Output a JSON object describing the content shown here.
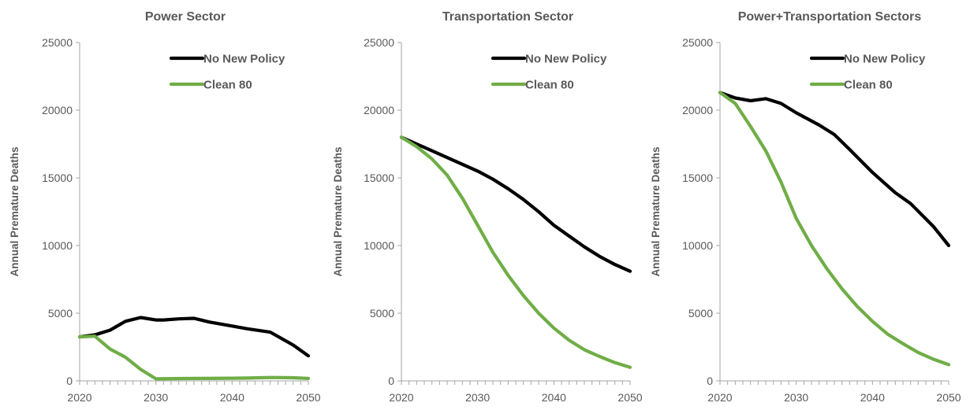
{
  "chart_data": [
    {
      "type": "line",
      "title": "Power Sector",
      "xlabel": "",
      "ylabel": "Annual Premature Deaths",
      "xlim": [
        2020,
        2050
      ],
      "ylim": [
        0,
        25000
      ],
      "xticks": [
        2020,
        2030,
        2040,
        2050
      ],
      "yticks": [
        0,
        5000,
        10000,
        15000,
        20000,
        25000
      ],
      "grid": false,
      "legend": "top-right",
      "series": [
        {
          "name": "No New Policy",
          "color": "#000000",
          "x": [
            2020,
            2022,
            2024,
            2026,
            2028,
            2030,
            2031,
            2033,
            2035,
            2037,
            2040,
            2042,
            2045,
            2048,
            2050
          ],
          "y": [
            3250,
            3400,
            3750,
            4400,
            4680,
            4500,
            4500,
            4580,
            4620,
            4350,
            4050,
            3850,
            3600,
            2650,
            1850
          ]
        },
        {
          "name": "Clean 80",
          "color": "#70ad47",
          "x": [
            2020,
            2022,
            2024,
            2026,
            2028,
            2030,
            2035,
            2040,
            2042,
            2045,
            2048,
            2050
          ],
          "y": [
            3250,
            3300,
            2350,
            1750,
            850,
            150,
            180,
            200,
            210,
            250,
            230,
            180
          ]
        }
      ]
    },
    {
      "type": "line",
      "title": "Transportation Sector",
      "xlabel": "",
      "ylabel": "Annual Premature Deaths",
      "xlim": [
        2020,
        2050
      ],
      "ylim": [
        0,
        25000
      ],
      "xticks": [
        2020,
        2030,
        2040,
        2050
      ],
      "yticks": [
        0,
        5000,
        10000,
        15000,
        20000,
        25000
      ],
      "grid": false,
      "legend": "top-right",
      "series": [
        {
          "name": "No New Policy",
          "color": "#000000",
          "x": [
            2020,
            2022,
            2024,
            2026,
            2028,
            2030,
            2032,
            2034,
            2036,
            2038,
            2040,
            2042,
            2044,
            2046,
            2048,
            2050
          ],
          "y": [
            18000,
            17500,
            17000,
            16500,
            16000,
            15500,
            14900,
            14200,
            13400,
            12500,
            11500,
            10700,
            9900,
            9200,
            8600,
            8100
          ]
        },
        {
          "name": "Clean 80",
          "color": "#70ad47",
          "x": [
            2020,
            2022,
            2024,
            2026,
            2028,
            2030,
            2032,
            2034,
            2036,
            2038,
            2040,
            2042,
            2044,
            2046,
            2048,
            2050
          ],
          "y": [
            18000,
            17300,
            16400,
            15200,
            13500,
            11500,
            9500,
            7800,
            6300,
            5000,
            3900,
            3000,
            2300,
            1800,
            1350,
            1000
          ]
        }
      ]
    },
    {
      "type": "line",
      "title": "Power+Transportation Sectors",
      "xlabel": "",
      "ylabel": "Annual Premature Deaths",
      "xlim": [
        2020,
        2050
      ],
      "ylim": [
        0,
        25000
      ],
      "xticks": [
        2020,
        2030,
        2040,
        2050
      ],
      "yticks": [
        0,
        5000,
        10000,
        15000,
        20000,
        25000
      ],
      "grid": false,
      "legend": "top-right",
      "series": [
        {
          "name": "No New Policy",
          "color": "#000000",
          "x": [
            2020,
            2022,
            2024,
            2026,
            2028,
            2030,
            2033,
            2035,
            2037,
            2040,
            2043,
            2045,
            2048,
            2050
          ],
          "y": [
            21300,
            20900,
            20700,
            20850,
            20500,
            19800,
            18900,
            18200,
            17100,
            15400,
            13900,
            13100,
            11400,
            10000
          ]
        },
        {
          "name": "Clean 80",
          "color": "#70ad47",
          "x": [
            2020,
            2022,
            2024,
            2026,
            2028,
            2030,
            2032,
            2034,
            2036,
            2038,
            2040,
            2042,
            2044,
            2046,
            2048,
            2050
          ],
          "y": [
            21300,
            20500,
            18800,
            17000,
            14700,
            12000,
            10000,
            8300,
            6800,
            5500,
            4400,
            3450,
            2750,
            2100,
            1600,
            1200
          ]
        }
      ]
    }
  ]
}
